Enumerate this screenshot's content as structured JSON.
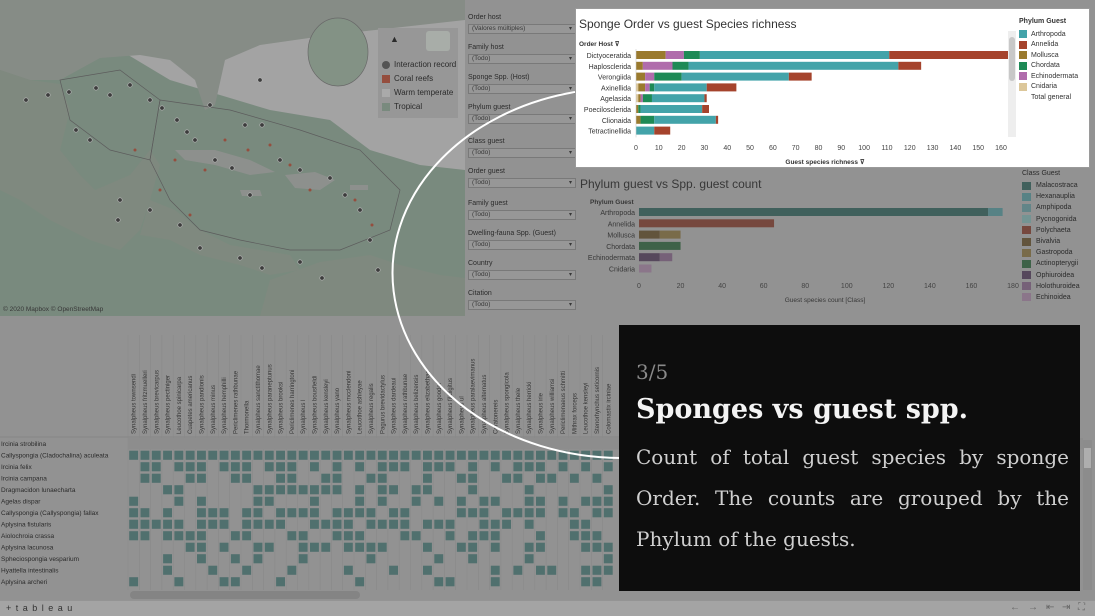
{
  "map": {
    "legend": [
      {
        "label": "Interaction record",
        "icon": "pin-icon",
        "color": "#5a5a5a"
      },
      {
        "label": "Coral reefs",
        "icon": "coral-icon",
        "color": "#b4523c"
      },
      {
        "label": "Warm temperate",
        "icon": "",
        "color": "#d2d2d2"
      },
      {
        "label": "Tropical",
        "icon": "",
        "color": "#8ea595"
      }
    ],
    "credit": "© 2020 Mapbox © OpenStreetMap"
  },
  "filters": [
    {
      "label": "Order host",
      "value": "(Valores múltiples)"
    },
    {
      "label": "Family host",
      "value": "(Todo)"
    },
    {
      "label": "Sponge Spp. (Host)",
      "value": "(Todo)"
    },
    {
      "label": "Phylum guest",
      "value": "(Todo)"
    },
    {
      "label": "Class guest",
      "value": "(Todo)"
    },
    {
      "label": "Order guest",
      "value": "(Todo)"
    },
    {
      "label": "Family guest",
      "value": "(Todo)"
    },
    {
      "label": "Dwelling-fauna Spp. (Guest)",
      "value": "(Todo)"
    },
    {
      "label": "Country",
      "value": "(Todo)"
    },
    {
      "label": "Citation",
      "value": "(Todo)"
    }
  ],
  "chart_data": [
    {
      "type": "bar",
      "orientation": "horizontal-stacked",
      "title": "Sponge Order vs guest Species richness",
      "row_header": "Order Host",
      "xlabel": "Guest species richness",
      "xlim": [
        0,
        160
      ],
      "xticks": [
        0,
        10,
        20,
        30,
        40,
        50,
        60,
        70,
        80,
        90,
        100,
        110,
        120,
        130,
        140,
        150,
        160
      ],
      "legend_title": "Phylum Guest",
      "legend": [
        "Arthropoda",
        "Annelida",
        "Mollusca",
        "Chordata",
        "Echinodermata",
        "Cnidaria",
        "Total general"
      ],
      "categories": [
        "Dictyoceratida",
        "Haplosclerida",
        "Verongiida",
        "Axinellida",
        "Agelasida",
        "Poecilosclerida",
        "Clionaida",
        "Tetractinellida"
      ],
      "series": [
        {
          "name": "Cnidaria",
          "color": "#dcc79a",
          "values": [
            0,
            0,
            0,
            1,
            1,
            0,
            0,
            0
          ]
        },
        {
          "name": "Mollusca",
          "color": "#9a7a2e",
          "values": [
            13,
            3,
            4,
            3,
            1,
            1,
            2,
            0
          ]
        },
        {
          "name": "Echinodermata",
          "color": "#b06cac",
          "values": [
            8,
            13,
            4,
            2,
            1,
            0,
            0,
            0
          ]
        },
        {
          "name": "Chordata",
          "color": "#1e8a56",
          "values": [
            7,
            7,
            12,
            2,
            4,
            1,
            6,
            0
          ]
        },
        {
          "name": "Arthropoda",
          "color": "#43a3a9",
          "values": [
            83,
            92,
            47,
            23,
            23,
            27,
            27,
            8
          ]
        },
        {
          "name": "Annelida",
          "color": "#a5432c",
          "values": [
            54,
            10,
            10,
            13,
            1,
            3,
            1,
            7
          ]
        }
      ]
    },
    {
      "type": "bar",
      "orientation": "horizontal-stacked",
      "title": "Phylum guest vs Spp. guest count",
      "row_header": "Phylum Guest",
      "xlabel": "Guest species count [Class]",
      "xlim": [
        0,
        180
      ],
      "xticks": [
        0,
        20,
        40,
        60,
        80,
        100,
        120,
        140,
        160,
        180
      ],
      "legend_title": "Class Guest",
      "legend": [
        {
          "name": "Malacostraca",
          "color": "#3f6b66"
        },
        {
          "name": "Hexanauplia",
          "color": "#5f9a9f"
        },
        {
          "name": "Amphipoda",
          "color": "#6e9ea2"
        },
        {
          "name": "Pycnogonida",
          "color": "#87b3b2"
        },
        {
          "name": "Polychaeta",
          "color": "#8a4a3c"
        },
        {
          "name": "Bivalvia",
          "color": "#6e5a3a"
        },
        {
          "name": "Gastropoda",
          "color": "#8e7a4c"
        },
        {
          "name": "Actinopterygii",
          "color": "#3c6e4a"
        },
        {
          "name": "Ophiuroidea",
          "color": "#5e4a66"
        },
        {
          "name": "Holothuroidea",
          "color": "#8a6c8c"
        },
        {
          "name": "Echinoidea",
          "color": "#a78aa6"
        }
      ],
      "categories": [
        "Arthropoda",
        "Annelida",
        "Mollusca",
        "Chordata",
        "Echinodermata",
        "Cnidaria"
      ],
      "series": [
        {
          "name": "Malacostraca",
          "color": "#3f6b66",
          "values": [
            168,
            0,
            0,
            0,
            0,
            0
          ]
        },
        {
          "name": "Hexanauplia",
          "color": "#5f9a9f",
          "values": [
            7,
            0,
            0,
            0,
            0,
            0
          ]
        },
        {
          "name": "Polychaeta",
          "color": "#8a4a3c",
          "values": [
            0,
            65,
            0,
            0,
            0,
            0
          ]
        },
        {
          "name": "Bivalvia",
          "color": "#6e5a3a",
          "values": [
            0,
            0,
            10,
            0,
            0,
            0
          ]
        },
        {
          "name": "Gastropoda",
          "color": "#8e7a4c",
          "values": [
            0,
            0,
            10,
            0,
            0,
            0
          ]
        },
        {
          "name": "Actinopterygii",
          "color": "#3c6e4a",
          "values": [
            0,
            0,
            0,
            20,
            0,
            0
          ]
        },
        {
          "name": "Ophiuroidea",
          "color": "#5e4a66",
          "values": [
            0,
            0,
            0,
            0,
            10,
            0
          ]
        },
        {
          "name": "Holothuroidea",
          "color": "#8a6c8c",
          "values": [
            0,
            0,
            0,
            0,
            6,
            0
          ]
        },
        {
          "name": "Echinoidea",
          "color": "#a78aa6",
          "values": [
            0,
            0,
            0,
            0,
            0,
            6
          ]
        }
      ]
    }
  ],
  "matrix": {
    "columns": [
      "Synalpheus townsendi",
      "Synalpheus fritzmuelleri",
      "Synalpheus brevicarpus",
      "Synalpheus pectiniger",
      "Leucothoe spinicarpa",
      "Cuapetes americanus",
      "Synalpheus pandionis",
      "Synalpheus minus",
      "Synalpheus hemphilli",
      "Periclimenes rathbunae",
      "Thormonella",
      "Synalpheus sanctithomae",
      "Synalpheus paraneptunus",
      "Synalpheus brooksi",
      "Periclimenes harringtoni",
      "Synalpheus l",
      "Synalpheus bousfieldi",
      "Synalpheus kensleyi",
      "Synalpheus yano",
      "Synalpheus mcclendoni",
      "Leucothoe ashleyae",
      "Synalpheus regalis",
      "Pagurus brevidactylus",
      "Synalpheus dardeaui",
      "Synalpheus rathbunae",
      "Synalpheus belizensis",
      "Synalpheus elizabethae",
      "Synalpheus goodei",
      "Synalpheus filidigitus",
      "Synalpheus ul",
      "Synalpheus paralaevimanus",
      "Synalpheus alternatus",
      "Ceratonereis",
      "Synalpheus spongicola",
      "Synalpheus thele",
      "Synalpheus herricki",
      "Synalpheus irie",
      "Synalpheus williamsi",
      "Periclimenaeus schmitti",
      "Mithrax forceps",
      "Leucothoe kensleyi",
      "Stenorhynchus seticornis",
      "Colomastix irciniae"
    ],
    "rows": [
      "Ircinia strobilina",
      "Callyspongia (Cladochalina) aculeata",
      "Ircinia felix",
      "Ircinia campana",
      "Dragmacidon lunaecharta",
      "Agelas dispar",
      "Callyspongia (Callyspongia) fallax",
      "Aplysina fistularis",
      "Aiolochroia crassa",
      "Aplysina lacunosa",
      "Spheciospongia vesparium",
      "Hyattella intestinalis",
      "Aplysina archeri"
    ]
  },
  "story": {
    "step": "3/5",
    "title": "Sponges vs guest spp.",
    "body": "Count of total guest species by sponge Order. The counts are grouped by the Phylum of the guests."
  },
  "footer": {
    "logo": "+ t a b l e a u"
  }
}
